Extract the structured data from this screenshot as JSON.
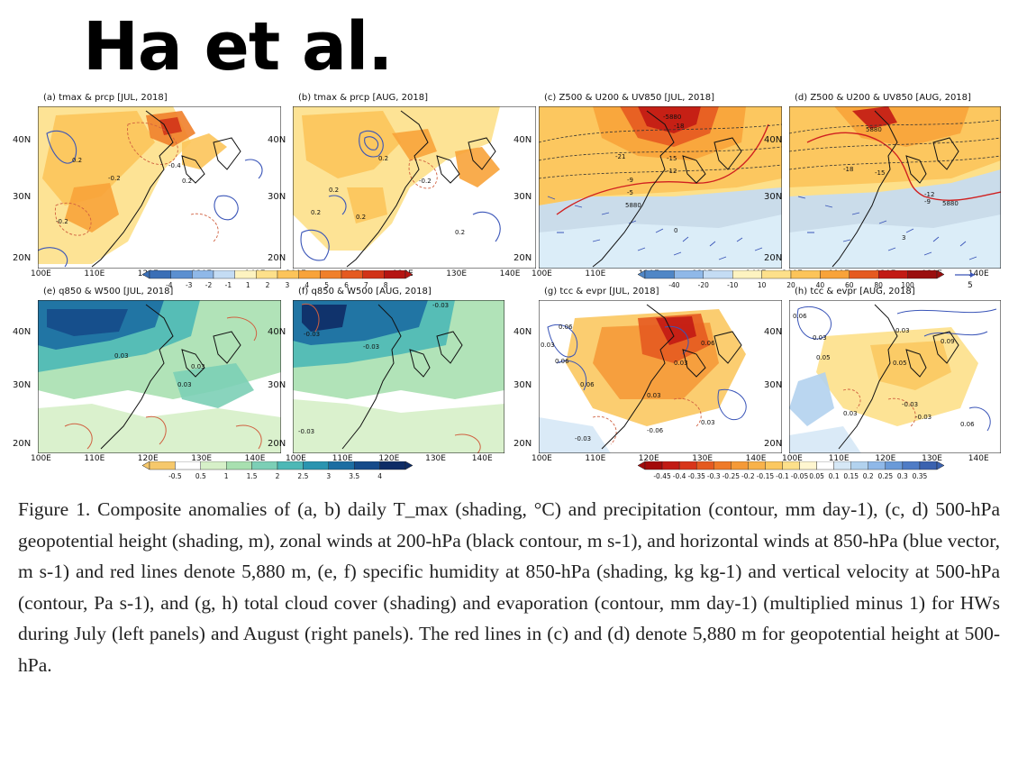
{
  "header": {
    "title": "Ha et al."
  },
  "lat_labels": [
    "40N",
    "30N",
    "20N"
  ],
  "lon_labels": [
    "100E",
    "110E",
    "120E",
    "130E",
    "140E"
  ],
  "panels": [
    {
      "title": "(a) tmax & prcp [JUL, 2018]",
      "labels": [
        "0.2",
        "-0.4",
        "-0.2",
        "-0.2",
        "0.2"
      ]
    },
    {
      "title": "(b) tmax & prcp [AUG, 2018]",
      "labels": [
        "0.2",
        "0.2",
        "-0.2",
        "0.2",
        "0.2",
        "0.2"
      ]
    },
    {
      "title": "(c) Z500 & U200 & UV850 [JUL, 2018]",
      "labels": [
        "-5880",
        "-18",
        "-15",
        "-12",
        "-21",
        "-9",
        "-5",
        "5880",
        "0"
      ]
    },
    {
      "title": "(d) Z500 & U200 & UV850 [AUG, 2018]",
      "labels": [
        "5880",
        "-18",
        "-15",
        "-12",
        "-9",
        "5880",
        "3"
      ]
    },
    {
      "title": "(e) q850 & W500 [JUL, 2018]",
      "labels": [
        "0.03",
        "0.03",
        "0.03"
      ]
    },
    {
      "title": "(f) q850 & W500 [AUG, 2018]",
      "labels": [
        "-0.03",
        "-0.03",
        "-0.03",
        "-0.03"
      ]
    },
    {
      "title": "(g) tcc & evpr [JUL, 2018]",
      "labels": [
        "0.06",
        "0.03",
        "0.06",
        "0.06",
        "0.03",
        "0.06",
        "0.03",
        "0.03",
        "-0.03",
        "-0.06"
      ]
    },
    {
      "title": "(h) tcc & evpr [AUG, 2018]",
      "labels": [
        "0.06",
        "0.03",
        "0.05",
        "0.05",
        "0.03",
        "0.09",
        "-0.03",
        "-0.03",
        "0.03",
        "0.06"
      ]
    }
  ],
  "colorbars": [
    {
      "ticks": [
        "-4",
        "-3",
        "-2",
        "-1",
        "1",
        "2",
        "3",
        "4",
        "5",
        "6",
        "7",
        "8"
      ],
      "colors": [
        "#3b6fb6",
        "#5b8fd0",
        "#8fb8e8",
        "#c4dcf4",
        "#fdf3c0",
        "#fde08a",
        "#fcc45a",
        "#f8a33a",
        "#f07f2a",
        "#e55a20",
        "#d13318",
        "#b51512"
      ]
    },
    {
      "ticks": [
        "-40",
        "-20",
        "-10",
        "10",
        "20",
        "40",
        "60",
        "80",
        "100"
      ],
      "colors": [
        "#4f86c6",
        "#8fb8e8",
        "#c4dcf4",
        "#fdf3c0",
        "#fde08a",
        "#fcc45a",
        "#f8a33a",
        "#e55a20",
        "#c21a14",
        "#9a0f0f"
      ]
    },
    {
      "ticks": [
        "-0.5",
        "0.5",
        "1",
        "1.5",
        "2",
        "2.5",
        "3",
        "3.5",
        "4"
      ],
      "colors": [
        "#f6c86b",
        "#ffffff",
        "#d6f0c8",
        "#a8e0b0",
        "#7ccfb6",
        "#4db8b6",
        "#2a94b0",
        "#1c6da2",
        "#154b8a",
        "#0e2c66"
      ]
    },
    {
      "ticks": [
        "-0.45",
        "-0.4",
        "-0.35",
        "-0.3",
        "-0.25",
        "-0.2",
        "-0.15",
        "-0.1",
        "-0.05",
        "0.05",
        "0.1",
        "0.15",
        "0.2",
        "0.25",
        "0.3",
        "0.35"
      ],
      "colors": [
        "#a30a0a",
        "#c21a14",
        "#d8361a",
        "#e55a20",
        "#ef7a28",
        "#f59a38",
        "#f8b24a",
        "#fbc860",
        "#fde08a",
        "#fff6d0",
        "#ffffff",
        "#d6e8f6",
        "#b2d2ee",
        "#8fb8e8",
        "#6a9ad8",
        "#4f7cc6",
        "#3b62b0"
      ]
    }
  ],
  "vector_ref": "5",
  "caption": "Figure 1. Composite anomalies of (a, b) daily T_max (shading, °C) and precipitation (contour, mm day-1), (c, d) 500-hPa geopotential height (shading, m), zonal winds at 200-hPa (black contour, m s-1), and horizontal winds at 850-hPa (blue vector, m s-1) and red lines denote 5,880 m, (e, f) specific humidity at 850-hPa (shading, kg kg-1) and vertical velocity at 500-hPa (contour, Pa s-1), and (g, h) total cloud cover (shading) and evaporation (contour, mm day-1) (multiplied minus 1) for HWs during July (left panels) and August (right panels). The red lines in (c) and (d) denote 5,880 m for geopotential height at 500-hPa."
}
